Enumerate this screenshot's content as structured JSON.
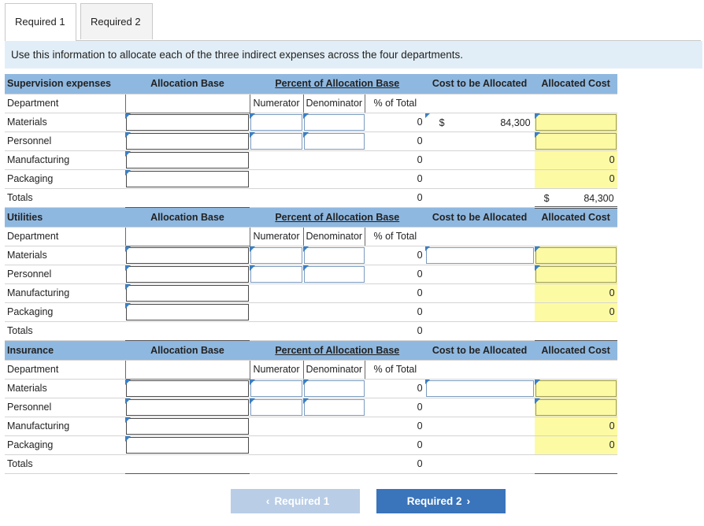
{
  "tabs": [
    {
      "label": "Required 1",
      "active": true
    },
    {
      "label": "Required 2",
      "active": false
    }
  ],
  "instruction": "Use this information to allocate each of the three indirect expenses across the four departments.",
  "colors": {
    "header_bg": "#8fb8e0",
    "input_highlight": "#fdfaa4",
    "instruction_bg": "#e2eef7",
    "next_button": "#3a74bb",
    "prev_button_disabled": "#b9cde6"
  },
  "sections": [
    {
      "title": "Supervision expenses",
      "allocation_base_label": "Allocation Base",
      "percent_label": "Percent of Allocation Base",
      "cost_label": "Cost to be Allocated",
      "allocated_label": "Allocated Cost",
      "department_label": "Department",
      "numerator_label": "Numerator",
      "denominator_label": "Denominator",
      "pct_total_label": "% of Total",
      "rows": [
        {
          "name": "Materials",
          "pct": "0",
          "cost_symbol": "$",
          "cost": "84,300",
          "allocated": ""
        },
        {
          "name": "Personnel",
          "pct": "0",
          "cost_symbol": "",
          "cost": "",
          "allocated": ""
        },
        {
          "name": "Manufacturing",
          "pct": "0",
          "cost_symbol": "",
          "cost": "",
          "allocated": "0"
        },
        {
          "name": "Packaging",
          "pct": "0",
          "cost_symbol": "",
          "cost": "",
          "allocated": "0"
        }
      ],
      "totals_label": "Totals",
      "totals_pct": "0",
      "totals_symbol": "$",
      "totals_allocated": "84,300"
    },
    {
      "title": "Utilities",
      "allocation_base_label": "Allocation Base",
      "percent_label": "Percent of Allocation Base",
      "cost_label": "Cost to be Allocated",
      "allocated_label": "Allocated Cost",
      "department_label": "Department",
      "numerator_label": "Numerator",
      "denominator_label": "Denominator",
      "pct_total_label": "% of Total",
      "rows": [
        {
          "name": "Materials",
          "pct": "0",
          "allocated": ""
        },
        {
          "name": "Personnel",
          "pct": "0",
          "allocated": ""
        },
        {
          "name": "Manufacturing",
          "pct": "0",
          "allocated": "0"
        },
        {
          "name": "Packaging",
          "pct": "0",
          "allocated": "0"
        }
      ],
      "totals_label": "Totals",
      "totals_pct": "0"
    },
    {
      "title": "Insurance",
      "allocation_base_label": "Allocation Base",
      "percent_label": "Percent of Allocation Base",
      "cost_label": "Cost to be Allocated",
      "allocated_label": "Allocated Cost",
      "department_label": "Department",
      "numerator_label": "Numerator",
      "denominator_label": "Denominator",
      "pct_total_label": "% of Total",
      "rows": [
        {
          "name": "Materials",
          "pct": "0",
          "allocated": ""
        },
        {
          "name": "Personnel",
          "pct": "0",
          "allocated": ""
        },
        {
          "name": "Manufacturing",
          "pct": "0",
          "allocated": "0"
        },
        {
          "name": "Packaging",
          "pct": "0",
          "allocated": "0"
        }
      ],
      "totals_label": "Totals",
      "totals_pct": "0"
    }
  ],
  "nav": {
    "prev_label": "Required 1",
    "next_label": "Required 2",
    "prev_icon": "chevron-left-icon",
    "next_icon": "chevron-right-icon"
  }
}
